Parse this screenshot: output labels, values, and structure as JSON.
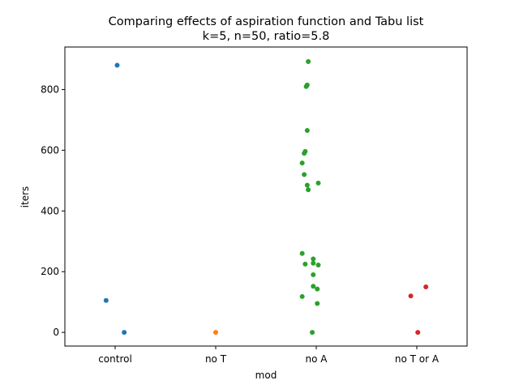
{
  "chart_data": {
    "type": "scatter",
    "subtype": "strip",
    "title": "Comparing effects of aspiration function and Tabu list",
    "subtitle": "k=5, n=50, ratio=5.8",
    "xlabel": "mod",
    "ylabel": "iters",
    "ylim": [
      -45,
      940
    ],
    "yticks": [
      0,
      200,
      400,
      600,
      800
    ],
    "categories": [
      "control",
      "no T",
      "no A",
      "no T or A"
    ],
    "grid": false,
    "legend": "none",
    "series": [
      {
        "category": "control",
        "color": "#1f77b4",
        "points": [
          {
            "jitter": 0.02,
            "y": 880
          },
          {
            "jitter": -0.09,
            "y": 105
          },
          {
            "jitter": 0.09,
            "y": 0
          }
        ]
      },
      {
        "category": "no T",
        "color": "#ff7f0e",
        "points": [
          {
            "jitter": 0.0,
            "y": 0
          }
        ]
      },
      {
        "category": "no A",
        "color": "#2ca02c",
        "points": [
          {
            "jitter": -0.08,
            "y": 892
          },
          {
            "jitter": -0.09,
            "y": 815
          },
          {
            "jitter": -0.1,
            "y": 810
          },
          {
            "jitter": -0.09,
            "y": 665
          },
          {
            "jitter": -0.11,
            "y": 596
          },
          {
            "jitter": -0.12,
            "y": 590
          },
          {
            "jitter": -0.14,
            "y": 558
          },
          {
            "jitter": -0.12,
            "y": 520
          },
          {
            "jitter": 0.02,
            "y": 492
          },
          {
            "jitter": -0.09,
            "y": 485
          },
          {
            "jitter": -0.08,
            "y": 470
          },
          {
            "jitter": -0.14,
            "y": 260
          },
          {
            "jitter": -0.03,
            "y": 242
          },
          {
            "jitter": -0.11,
            "y": 225
          },
          {
            "jitter": -0.03,
            "y": 228
          },
          {
            "jitter": 0.02,
            "y": 222
          },
          {
            "jitter": -0.03,
            "y": 190
          },
          {
            "jitter": -0.03,
            "y": 152
          },
          {
            "jitter": 0.01,
            "y": 143
          },
          {
            "jitter": -0.14,
            "y": 118
          },
          {
            "jitter": 0.01,
            "y": 95
          },
          {
            "jitter": -0.04,
            "y": 0
          }
        ]
      },
      {
        "category": "no T or A",
        "color": "#d62728",
        "points": [
          {
            "jitter": -0.06,
            "y": 120
          },
          {
            "jitter": 0.09,
            "y": 150
          },
          {
            "jitter": 0.01,
            "y": 0
          }
        ]
      }
    ]
  }
}
